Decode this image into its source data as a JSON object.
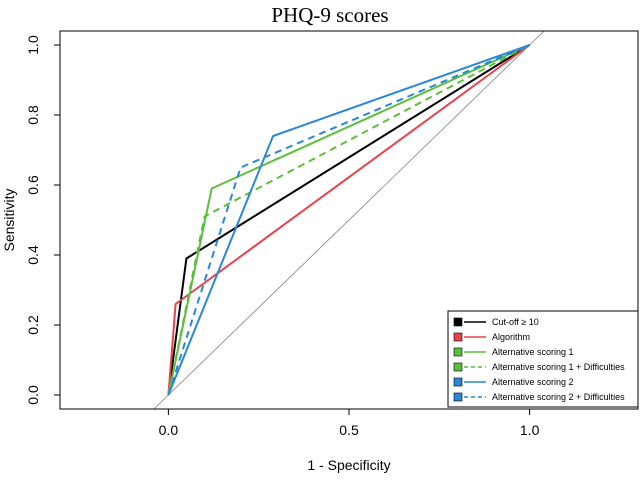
{
  "chart_data": {
    "type": "line",
    "title": "PHQ-9 scores",
    "xlabel": "1 - Specificity",
    "ylabel": "Sensitivity",
    "xlim": [
      -0.3,
      1.3
    ],
    "ylim": [
      -0.04,
      1.04
    ],
    "x_ticks": [
      0.0,
      0.5,
      1.0
    ],
    "x_tick_labels": [
      "0.0",
      "0.5",
      "1.0"
    ],
    "y_ticks": [
      0.0,
      0.2,
      0.4,
      0.6,
      0.8,
      1.0
    ],
    "y_tick_labels": [
      "0.0",
      "0.2",
      "0.4",
      "0.6",
      "0.8",
      "1.0"
    ],
    "reference_line": {
      "x": [
        -0.04,
        1.04
      ],
      "y": [
        -0.04,
        1.04
      ],
      "color": "#808080"
    },
    "legend_position": "bottom-right",
    "series": [
      {
        "name": "Cut-off ≥ 10",
        "color": "#000000",
        "dash": "solid",
        "x": [
          0.0,
          0.05,
          1.0
        ],
        "y": [
          0.0,
          0.39,
          1.0
        ]
      },
      {
        "name": "Algorithm",
        "color": "#e8424d",
        "dash": "solid",
        "x": [
          0.0,
          0.02,
          1.0
        ],
        "y": [
          0.0,
          0.26,
          1.0
        ]
      },
      {
        "name": "Alternative scoring 1",
        "color": "#5cbf3a",
        "dash": "solid",
        "x": [
          0.0,
          0.12,
          1.0
        ],
        "y": [
          0.0,
          0.59,
          1.0
        ]
      },
      {
        "name": "Alternative scoring 1 + Difficulties",
        "color": "#5cbf3a",
        "dash": "dashed",
        "x": [
          0.0,
          0.1,
          1.0
        ],
        "y": [
          0.0,
          0.51,
          1.0
        ]
      },
      {
        "name": "Alternative scoring 2",
        "color": "#2a87d8",
        "dash": "solid",
        "x": [
          0.0,
          0.29,
          1.0
        ],
        "y": [
          0.0,
          0.74,
          1.0
        ]
      },
      {
        "name": "Alternative scoring 2 + Difficulties",
        "color": "#2a87d8",
        "dash": "dashed",
        "x": [
          0.0,
          0.2,
          1.0
        ],
        "y": [
          0.0,
          0.65,
          1.0
        ]
      }
    ]
  }
}
